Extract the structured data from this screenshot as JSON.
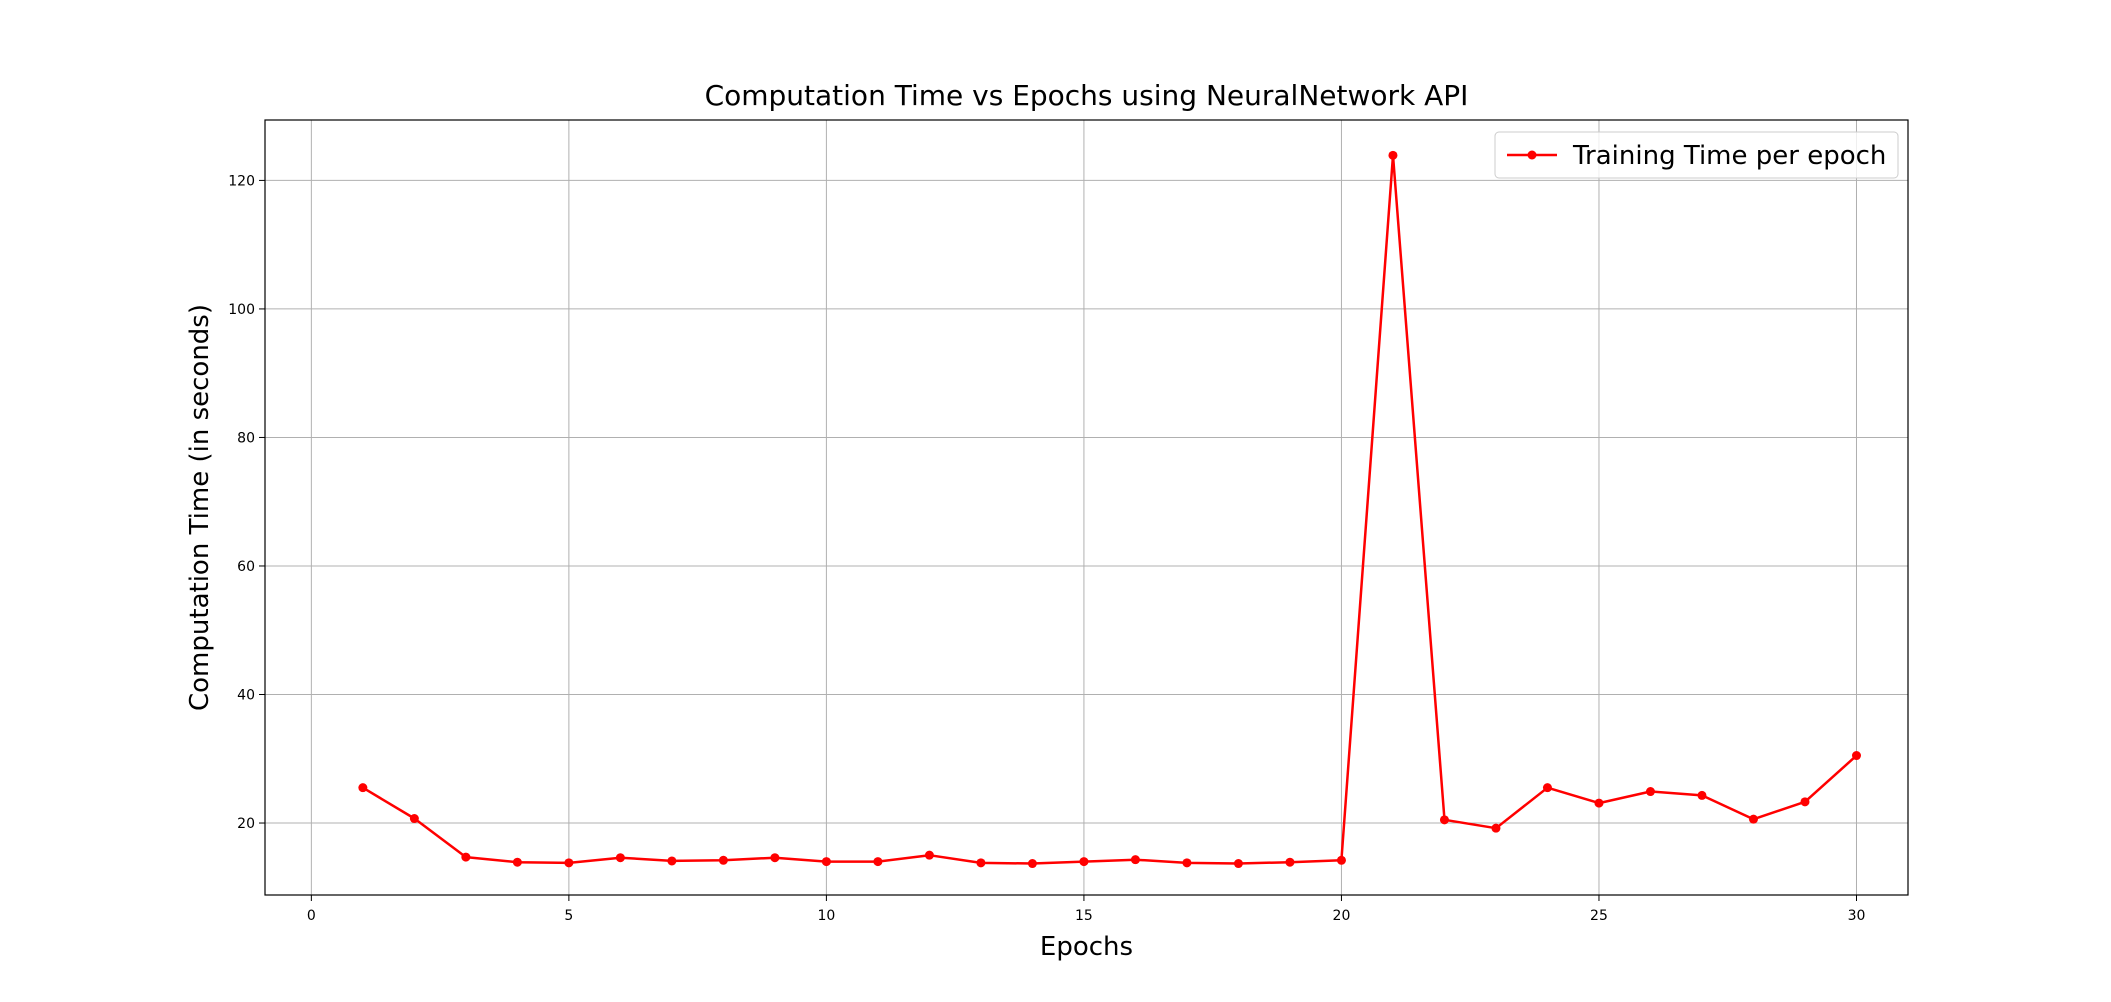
{
  "chart_data": {
    "type": "line",
    "title": "Computation Time vs Epochs using NeuralNetwork API",
    "xlabel": "Epochs",
    "ylabel": "Computation Time (in seconds)",
    "xlim": [
      -0.9,
      31.0
    ],
    "ylim": [
      8.8,
      129.4
    ],
    "xticks": [
      0,
      5,
      10,
      15,
      20,
      25,
      30
    ],
    "yticks": [
      20,
      40,
      60,
      80,
      100,
      120
    ],
    "grid": true,
    "legend_position": "top-right",
    "series": [
      {
        "name": "Training Time per epoch",
        "color": "#ff0000",
        "marker": "circle",
        "x": [
          1,
          2,
          3,
          4,
          5,
          6,
          7,
          8,
          9,
          10,
          11,
          12,
          13,
          14,
          15,
          16,
          17,
          18,
          19,
          20,
          21,
          22,
          23,
          24,
          25,
          26,
          27,
          28,
          29,
          30
        ],
        "y": [
          25.5,
          20.7,
          14.7,
          13.9,
          13.8,
          14.6,
          14.1,
          14.2,
          14.6,
          14.0,
          14.0,
          15.0,
          13.8,
          13.7,
          14.0,
          14.3,
          13.8,
          13.7,
          13.9,
          14.2,
          123.9,
          20.5,
          19.2,
          25.5,
          23.1,
          24.9,
          24.3,
          20.6,
          23.3,
          30.5
        ]
      }
    ]
  }
}
